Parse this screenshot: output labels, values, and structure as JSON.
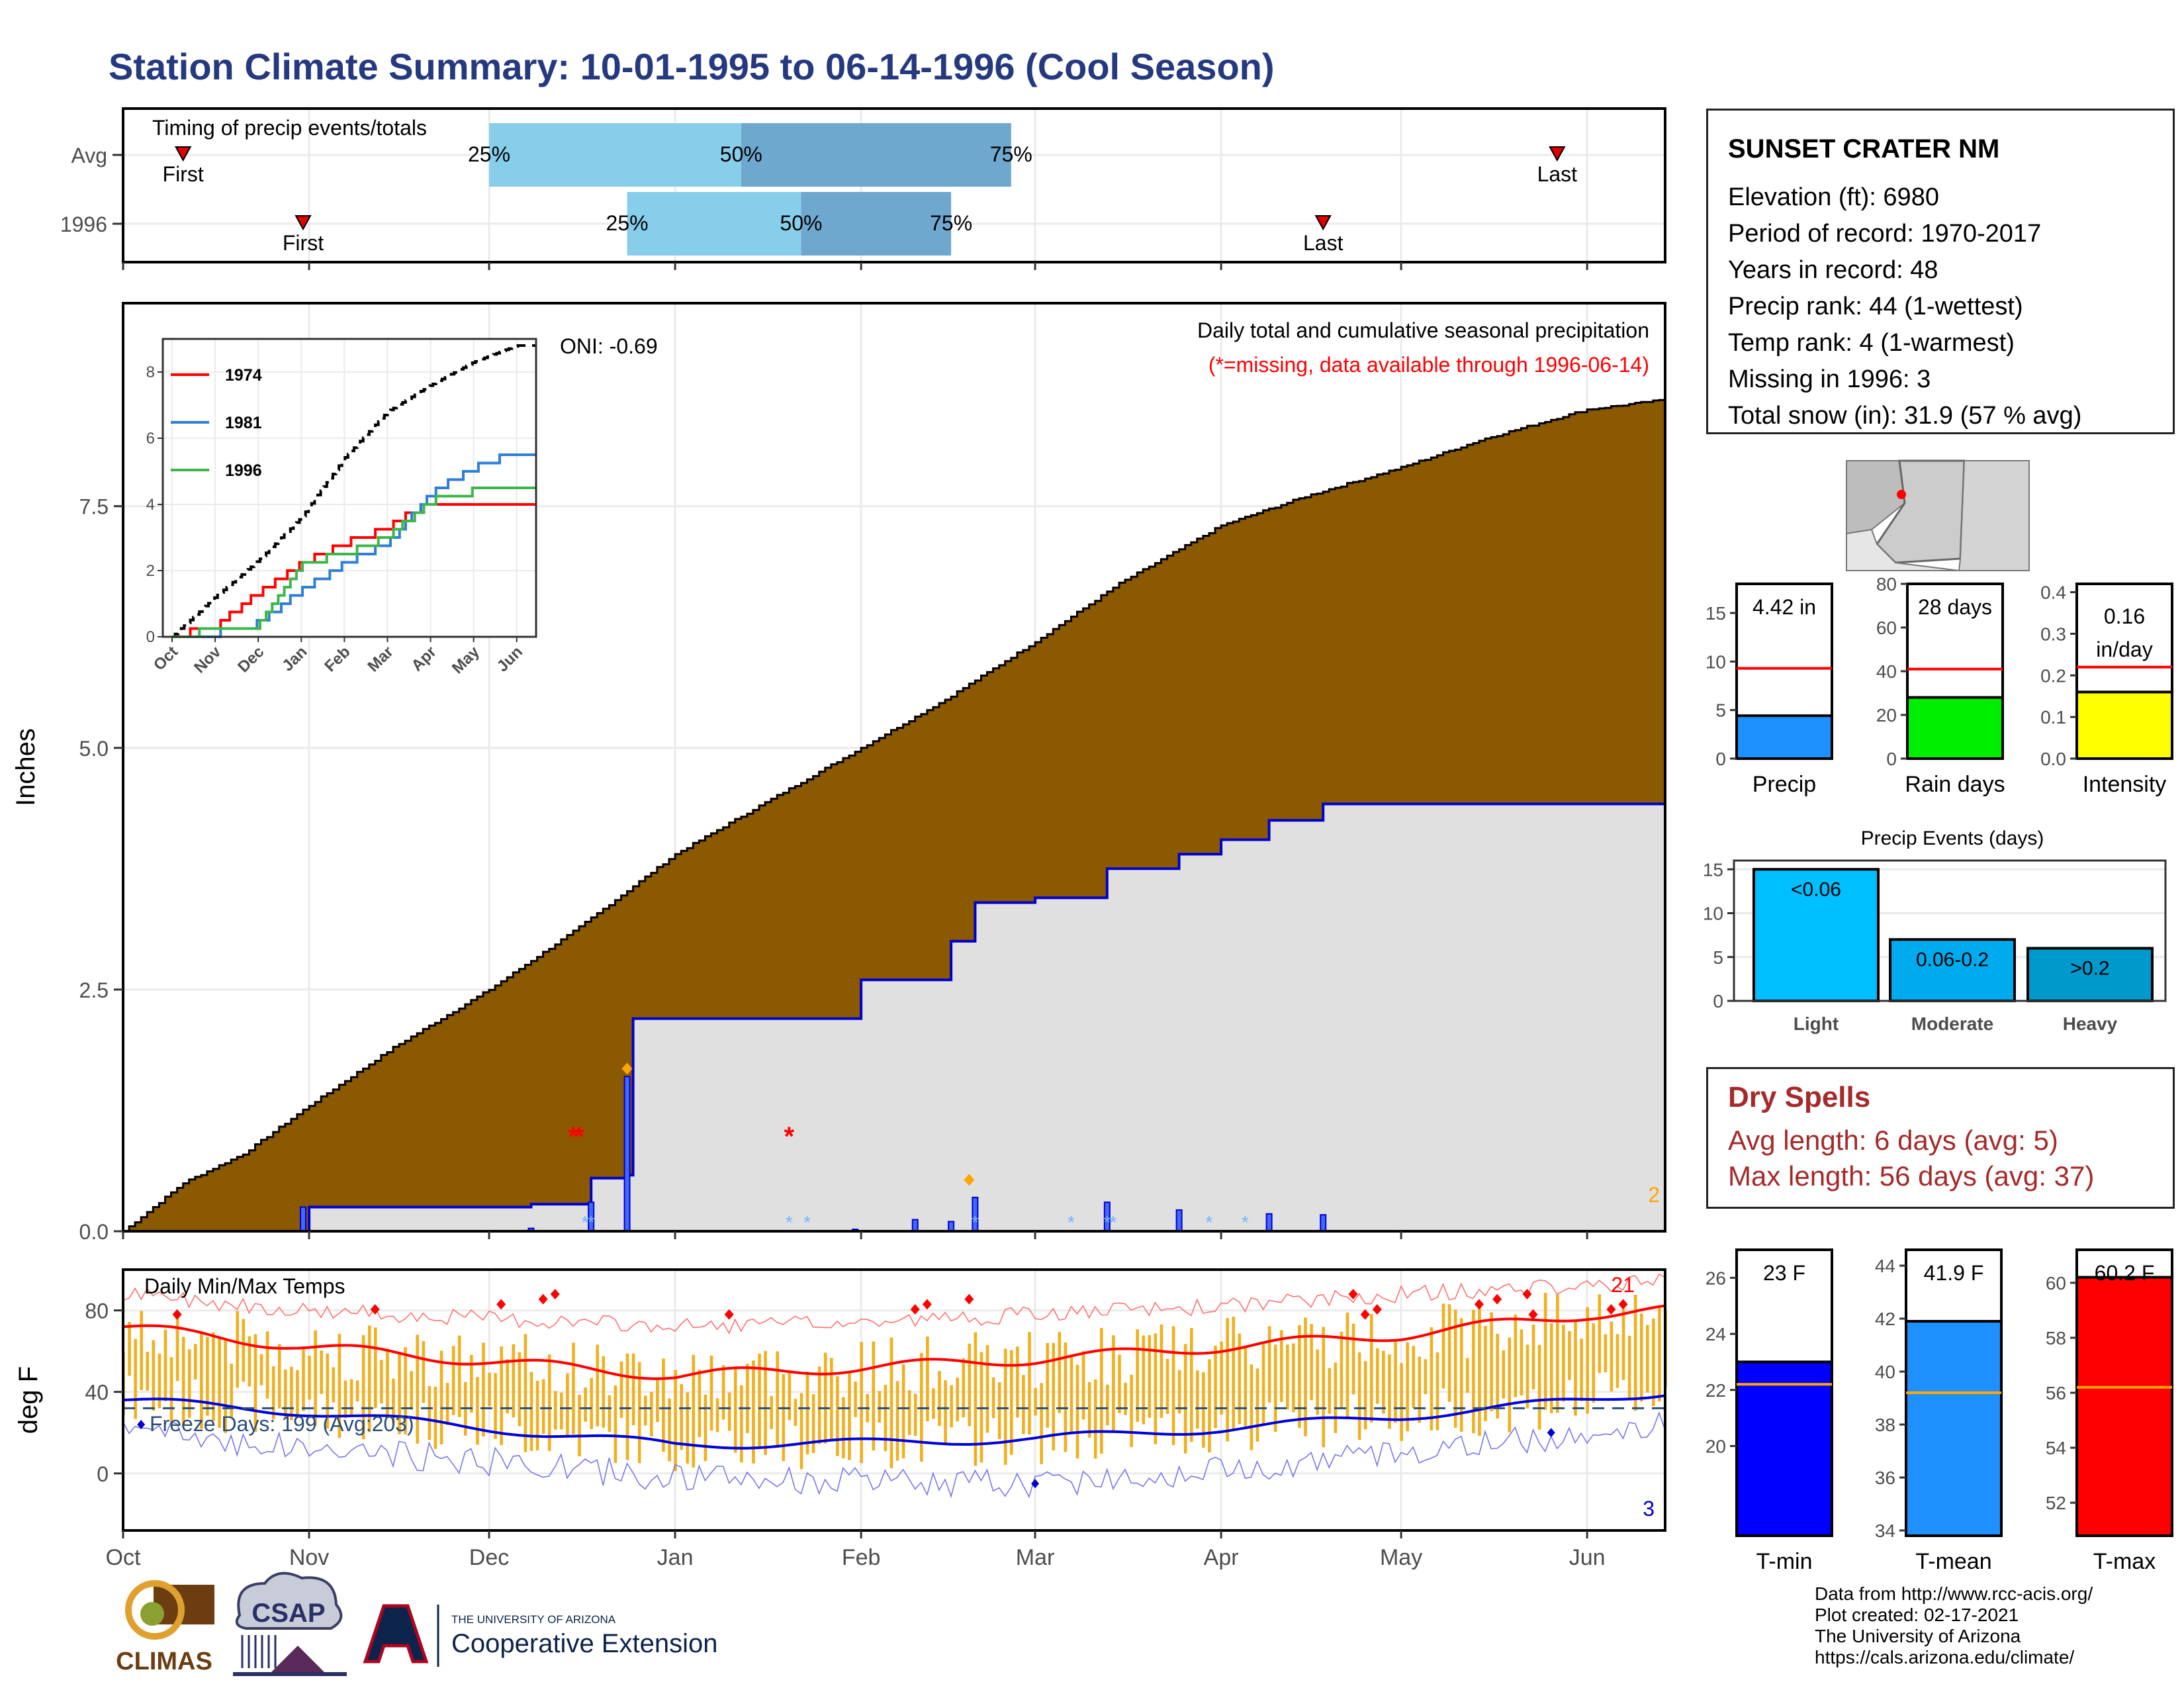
{
  "page": {
    "title": "Station Climate Summary: 10-01-1995 to 06-14-1996 (Cool Season)"
  },
  "colors": {
    "title": "#24397f",
    "avg_cumulative_fill": "#8b5a00",
    "season_cumulative_fill": "#e0e0e0",
    "season_cumulative_line": "#0000cc",
    "temp_bars": "#f0b020",
    "quartile_light": "#87ceeb",
    "quartile_dark": "#6fa8cf",
    "missing": "#ff0000",
    "dry_spells": "#a52a2a"
  },
  "timing_panel": {
    "title": "Timing of precip events/totals",
    "rows": [
      {
        "label": "Avg",
        "first": "First",
        "last": "Last",
        "q25": "25%",
        "q50": "50%",
        "q75": "75%",
        "first_date": "1995-10-11",
        "q25_date": "1995-12-01",
        "q50_date": "1996-01-12",
        "q75_date": "1996-02-26",
        "last_date": "1996-05-27"
      },
      {
        "label": "1996",
        "first": "First",
        "last": "Last",
        "q25": "25%",
        "q50": "50%",
        "q75": "75%",
        "first_date": "1995-10-31",
        "q25_date": "1995-12-24",
        "q50_date": "1996-01-22",
        "q75_date": "1996-02-16",
        "last_date": "1996-04-18"
      }
    ]
  },
  "precip_panel": {
    "title": "Daily total and cumulative seasonal precipitation",
    "subtitle": "(*=missing, data available through 1996-06-14)",
    "oni": "ONI: -0.69",
    "ylabel": "Inches",
    "yticks": [
      "0.0",
      "2.5",
      "5.0",
      "7.5"
    ],
    "count_label": "2"
  },
  "inset_chart": {
    "yticks": [
      "0",
      "2",
      "4",
      "6",
      "8"
    ],
    "xticks": [
      "Oct",
      "Nov",
      "Dec",
      "Jan",
      "Feb",
      "Mar",
      "Apr",
      "May",
      "Jun"
    ],
    "legend": [
      "1974",
      "1981",
      "1996"
    ]
  },
  "temp_panel": {
    "title": "Daily Min/Max Temps",
    "ylabel": "deg F",
    "yticks": [
      "0",
      "40",
      "80"
    ],
    "freeze": "Freeze Days: 199 (Avg:203)",
    "hot_count": "21",
    "cold_count": "3",
    "xticks": [
      "Oct",
      "Nov",
      "Dec",
      "Jan",
      "Feb",
      "Mar",
      "Apr",
      "May",
      "Jun"
    ]
  },
  "station": {
    "name": "SUNSET CRATER NM",
    "lines": [
      "Elevation (ft): 6980",
      "Period of record: 1970-2017",
      "Years in record: 48",
      "Precip rank: 44 (1-wettest)",
      "Temp rank: 4 (1-warmest)",
      "Missing in 1996: 3",
      "Total snow (in): 31.9 (57 % avg)"
    ]
  },
  "summary_bars": [
    {
      "label": "Precip",
      "value": 4.42,
      "avg": 9.3,
      "text": "4.42 in",
      "yticks": [
        "0",
        "5",
        "10",
        "15"
      ],
      "ymax": 18,
      "color": "#1e90ff"
    },
    {
      "label": "Rain days",
      "value": 28,
      "avg": 41,
      "text": "28 days",
      "yticks": [
        "0",
        "20",
        "40",
        "60",
        "80"
      ],
      "ymax": 80,
      "color": "#00ee00"
    },
    {
      "label": "Intensity",
      "value": 0.16,
      "avg": 0.22,
      "text": "0.16",
      "text2": "in/day",
      "yticks": [
        "0.0",
        "0.1",
        "0.2",
        "0.3",
        "0.4"
      ],
      "ymax": 0.42,
      "color": "#ffff00"
    }
  ],
  "precip_events": {
    "title": "Precip Events (days)",
    "yticks": [
      "0",
      "5",
      "10",
      "15"
    ],
    "ymax": 16,
    "bars": [
      {
        "label": "Light",
        "range": "<0.06",
        "value": 15,
        "color": "#00bfff"
      },
      {
        "label": "Moderate",
        "range": "0.06-0.2",
        "value": 7,
        "color": "#00aaee"
      },
      {
        "label": "Heavy",
        "range": ">0.2",
        "value": 6,
        "color": "#0099cc"
      }
    ]
  },
  "dry_spells": {
    "title": "Dry Spells",
    "avg": "Avg length: 6 days (avg: 5)",
    "max": "Max length: 56 days (avg: 37)"
  },
  "temp_summary": [
    {
      "label": "T-min",
      "value": 23,
      "avg": 22.2,
      "text": "23 F",
      "yticks": [
        "20",
        "22",
        "24",
        "26"
      ],
      "ymin": 16.8,
      "ymax": 27,
      "color": "#0000ff"
    },
    {
      "label": "T-mean",
      "value": 41.9,
      "avg": 39.2,
      "text": "41.9 F",
      "yticks": [
        "34",
        "36",
        "38",
        "40",
        "42",
        "44"
      ],
      "ymin": 33.8,
      "ymax": 44.6,
      "color": "#1e90ff"
    },
    {
      "label": "T-max",
      "value": 60.2,
      "avg": 56.2,
      "text": "60.2 F",
      "yticks": [
        "52",
        "54",
        "56",
        "58",
        "60"
      ],
      "ymin": 50.8,
      "ymax": 61.2,
      "color": "#ff0000"
    }
  ],
  "footer": {
    "lines": [
      "Data from http://www.rcc-acis.org/",
      "Plot created: 02-17-2021",
      "The University of Arizona",
      "https://cals.arizona.edu/climate/"
    ]
  },
  "logos": {
    "climas": "CLIMAS",
    "csap": "CSAP",
    "ua_small": "THE UNIVERSITY OF ARIZONA",
    "coop": "Cooperative Extension"
  },
  "chart_data": [
    {
      "type": "area",
      "title": "Daily total and cumulative seasonal precipitation",
      "ylabel": "Inches",
      "ylim": [
        0,
        9.6
      ],
      "x_range": [
        "1995-10-01",
        "1996-06-14"
      ],
      "series": [
        {
          "name": "",
          "x": [
            "1995-10-01",
            "1995-10-11",
            "1995-10-21",
            "1995-11-01",
            "1995-11-15",
            "1995-12-01",
            "1995-12-15",
            "1996-01-01",
            "1996-01-15",
            "1996-02-01",
            "1996-02-15",
            "1996-03-01",
            "1996-03-15",
            "1996-04-01",
            "1996-04-15",
            "1996-05-01",
            "1996-05-15",
            "1996-06-01",
            "1996-06-14"
          ],
          "values": [
            0.0,
            0.5,
            0.8,
            1.3,
            1.9,
            2.5,
            3.1,
            3.9,
            4.4,
            5.0,
            5.5,
            6.1,
            6.7,
            7.3,
            7.6,
            7.9,
            8.2,
            8.5,
            8.6
          ]
        },
        {
          "name": "",
          "x": [
            "1995-10-01",
            "1995-10-31",
            "1995-11-01",
            "1995-12-08",
            "1995-12-18",
            "1995-12-24",
            "1995-12-25",
            "1996-01-01",
            "1996-01-15",
            "1996-02-01",
            "1996-02-10",
            "1996-02-16",
            "1996-02-20",
            "1996-03-01",
            "1996-03-13",
            "1996-03-25",
            "1996-04-01",
            "1996-04-09",
            "1996-04-18",
            "1996-06-14"
          ],
          "values": [
            0.0,
            0.0,
            0.25,
            0.28,
            0.55,
            0.58,
            2.2,
            2.2,
            2.2,
            2.6,
            2.6,
            3.0,
            3.4,
            3.45,
            3.75,
            3.9,
            4.05,
            4.25,
            4.42,
            4.42
          ]
        }
      ],
      "daily_bars": {
        "x": [
          "1995-10-31",
          "1995-12-08",
          "1995-12-18",
          "1995-12-24",
          "1996-01-31",
          "1996-02-10",
          "1996-02-16",
          "1996-02-20",
          "1996-03-13",
          "1996-03-25",
          "1996-04-09",
          "1996-04-18"
        ],
        "values": [
          0.25,
          0.03,
          0.3,
          1.6,
          0.02,
          0.12,
          0.1,
          0.35,
          0.3,
          0.22,
          0.18,
          0.17
        ]
      },
      "missing_days": [
        "1995-12-15",
        "1995-12-16",
        "1996-01-20"
      ]
    },
    {
      "type": "line",
      "title": "",
      "xlabel": "",
      "ylabel": "",
      "ylim": [
        0,
        9
      ],
      "series": [
        {
          "name": "",
          "x": [
            "Oct",
            "Nov",
            "Dec",
            "Jan",
            "Feb",
            "Mar",
            "Apr",
            "May",
            "Jun"
          ],
          "values": [
            0.0,
            1.2,
            2.3,
            3.6,
            5.4,
            6.8,
            7.6,
            8.3,
            8.8
          ]
        },
        {
          "name": "1974",
          "x": [
            "Oct",
            "Nov",
            "Dec",
            "Jan",
            "Feb",
            "Mar",
            "Apr",
            "May",
            "Jun"
          ],
          "values": [
            0.0,
            0.3,
            1.3,
            2.2,
            2.8,
            3.3,
            4.1,
            4.1,
            4.1
          ]
        },
        {
          "name": "1981",
          "x": [
            "Oct",
            "Nov",
            "Dec",
            "Jan",
            "Feb",
            "Mar",
            "Apr",
            "May",
            "Jun"
          ],
          "values": [
            0.0,
            0.1,
            0.4,
            1.4,
            2.2,
            2.8,
            4.3,
            5.1,
            5.6
          ]
        },
        {
          "name": "1996",
          "x": [
            "Oct",
            "Nov",
            "Dec",
            "Jan",
            "Feb",
            "Mar",
            "Apr",
            "May",
            "Jun"
          ],
          "values": [
            0.0,
            0.2,
            0.3,
            2.2,
            2.5,
            3.0,
            4.1,
            4.4,
            4.4
          ]
        }
      ]
    },
    {
      "type": "bar",
      "title": "Daily Min/Max Temps",
      "ylabel": "deg F",
      "ylim": [
        -28,
        100
      ],
      "x": [
        "1995-10-01",
        "1995-11-01",
        "1995-12-01",
        "1996-01-01",
        "1996-02-01",
        "1996-03-01",
        "1996-04-01",
        "1996-05-01",
        "1996-06-01",
        "1996-06-14"
      ],
      "series": [
        {
          "name": "",
          "values": [
            72,
            62,
            55,
            48,
            52,
            56,
            62,
            68,
            78,
            80
          ]
        },
        {
          "name": "",
          "values": [
            36,
            30,
            22,
            14,
            15,
            17,
            22,
            28,
            36,
            40
          ]
        },
        {
          "name": "",
          "values": [
            88,
            80,
            76,
            72,
            74,
            78,
            82,
            88,
            92,
            94
          ]
        },
        {
          "name": "",
          "values": [
            22,
            12,
            6,
            -2,
            -4,
            -5,
            2,
            10,
            20,
            24
          ]
        }
      ],
      "freeze_threshold": 32
    },
    {
      "type": "bar",
      "title": "",
      "categories": [
        "Precip",
        "Rain days",
        "Intensity"
      ],
      "values": [
        4.42,
        28,
        0.16
      ]
    },
    {
      "type": "bar",
      "title": "Precip Events (days)",
      "categories": [
        "Light",
        "Moderate",
        "Heavy"
      ],
      "values": [
        15,
        7,
        6
      ]
    },
    {
      "type": "bar",
      "title": "",
      "categories": [
        "T-min",
        "T-mean",
        "T-max"
      ],
      "values": [
        23,
        41.9,
        60.2
      ]
    }
  ]
}
